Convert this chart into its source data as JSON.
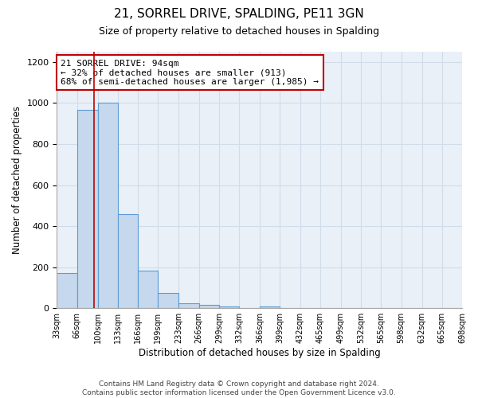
{
  "title": "21, SORREL DRIVE, SPALDING, PE11 3GN",
  "subtitle": "Size of property relative to detached houses in Spalding",
  "xlabel": "Distribution of detached houses by size in Spalding",
  "ylabel": "Number of detached properties",
  "bar_edges": [
    33,
    66,
    100,
    133,
    166,
    199,
    233,
    266,
    299,
    332,
    366,
    399,
    432,
    465,
    499,
    532,
    565,
    598,
    632,
    665,
    698
  ],
  "bar_heights": [
    170,
    965,
    1000,
    460,
    185,
    75,
    25,
    15,
    10,
    0,
    8,
    0,
    0,
    0,
    0,
    0,
    0,
    0,
    0,
    0
  ],
  "bar_color": "#c5d8ed",
  "bar_edgecolor": "#5b9bd5",
  "property_line_x": 94,
  "property_line_color": "#c00000",
  "annotation_line1": "21 SORREL DRIVE: 94sqm",
  "annotation_line2": "← 32% of detached houses are smaller (913)",
  "annotation_line3": "68% of semi-detached houses are larger (1,985) →",
  "annotation_box_color": "#ffffff",
  "annotation_box_edgecolor": "#c00000",
  "ylim": [
    0,
    1250
  ],
  "yticks": [
    0,
    200,
    400,
    600,
    800,
    1000,
    1200
  ],
  "tick_labels": [
    "33sqm",
    "66sqm",
    "100sqm",
    "133sqm",
    "166sqm",
    "199sqm",
    "233sqm",
    "266sqm",
    "299sqm",
    "332sqm",
    "366sqm",
    "399sqm",
    "432sqm",
    "465sqm",
    "499sqm",
    "532sqm",
    "565sqm",
    "598sqm",
    "632sqm",
    "665sqm",
    "698sqm"
  ],
  "footer_text": "Contains HM Land Registry data © Crown copyright and database right 2024.\nContains public sector information licensed under the Open Government Licence v3.0.",
  "title_fontsize": 11,
  "subtitle_fontsize": 9,
  "axis_label_fontsize": 8.5,
  "tick_fontsize": 7,
  "annotation_fontsize": 8,
  "footer_fontsize": 6.5,
  "grid_color": "#d0dce8",
  "background_color": "#eaf0f8"
}
